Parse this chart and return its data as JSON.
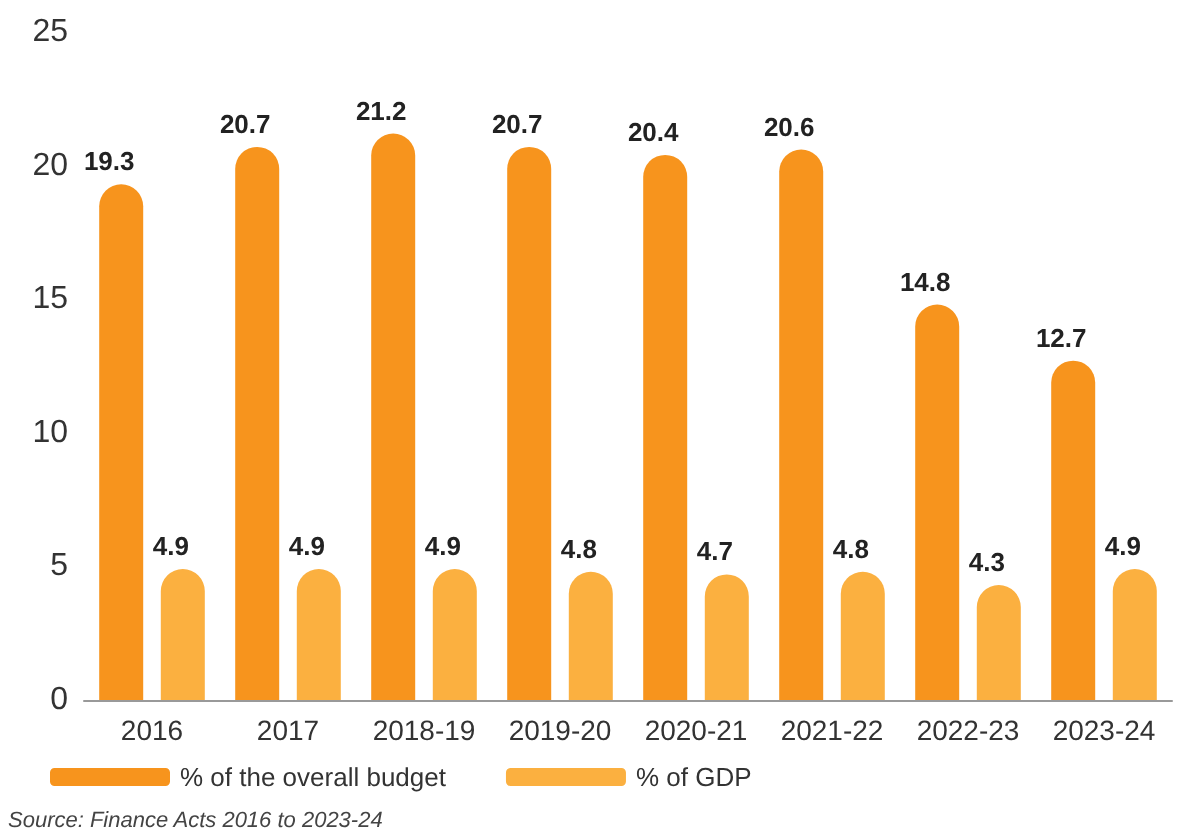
{
  "chart_data": {
    "type": "bar",
    "categories": [
      "2016",
      "2017",
      "2018-19",
      "2019-20",
      "2020-21",
      "2021-22",
      "2022-23",
      "2023-24"
    ],
    "series": [
      {
        "name": "% of the overall budget",
        "color": "#f7941d",
        "values": [
          19.3,
          20.7,
          21.2,
          20.7,
          20.4,
          20.6,
          14.8,
          12.7
        ]
      },
      {
        "name": "% of GDP",
        "color": "#fbb040",
        "values": [
          4.9,
          4.9,
          4.9,
          4.8,
          4.7,
          4.8,
          4.3,
          4.9
        ]
      }
    ],
    "ylim": [
      0,
      25
    ],
    "yticks": [
      0,
      5,
      10,
      15,
      20,
      25
    ],
    "grid": false,
    "legend": "bottom",
    "data_labels": true,
    "annotations": [
      "Source: Finance Acts 2016 to 2023-24"
    ]
  }
}
